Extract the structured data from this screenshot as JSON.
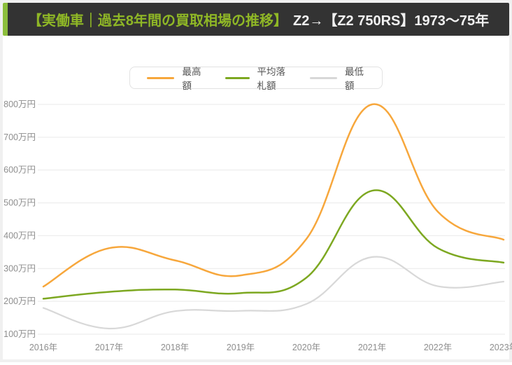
{
  "header": {
    "title_highlight": "【実働車｜過去8年間の買取相場の推移】",
    "title_rest": "Z2→【Z2 750RS】1973〜75年",
    "bg_color": "#333333",
    "accent_color": "#8cbe3c",
    "highlight_color": "#8fb726",
    "rest_color": "#f1f1f1"
  },
  "legend": {
    "items": [
      {
        "label": "最高額",
        "color": "#f7a73c"
      },
      {
        "label": "平均落札額",
        "color": "#7da821"
      },
      {
        "label": "最低額",
        "color": "#d8d8d8"
      }
    ]
  },
  "chart_data": {
    "type": "line",
    "x": [
      2016,
      2017,
      2018,
      2019,
      2020,
      2021,
      2022,
      2023
    ],
    "x_tick_labels": [
      "2016年",
      "2017年",
      "2018年",
      "2019年",
      "2020年",
      "2021年",
      "2022年",
      "2023年"
    ],
    "y_tick_values": [
      100,
      200,
      300,
      400,
      500,
      600,
      700,
      800
    ],
    "y_tick_labels": [
      "100万円",
      "200万円",
      "300万円",
      "400万円",
      "500万円",
      "600万円",
      "700万円",
      "800万円"
    ],
    "y_unit": "万円",
    "ylim": [
      100,
      800
    ],
    "grid": true,
    "legend_position": "top",
    "series": [
      {
        "name": "最高額",
        "color": "#f7a73c",
        "width": 2.5,
        "values": [
          245,
          362,
          325,
          279,
          390,
          800,
          473,
          388
        ]
      },
      {
        "name": "平均落札額",
        "color": "#7da821",
        "width": 2.5,
        "values": [
          208,
          229,
          236,
          225,
          272,
          537,
          362,
          318
        ]
      },
      {
        "name": "最低額",
        "color": "#d8d8d8",
        "width": 2.2,
        "values": [
          180,
          117,
          170,
          171,
          192,
          335,
          246,
          260
        ]
      }
    ],
    "axis_text_color": "#8e8e8e",
    "grid_color": "#e9e9e9"
  }
}
